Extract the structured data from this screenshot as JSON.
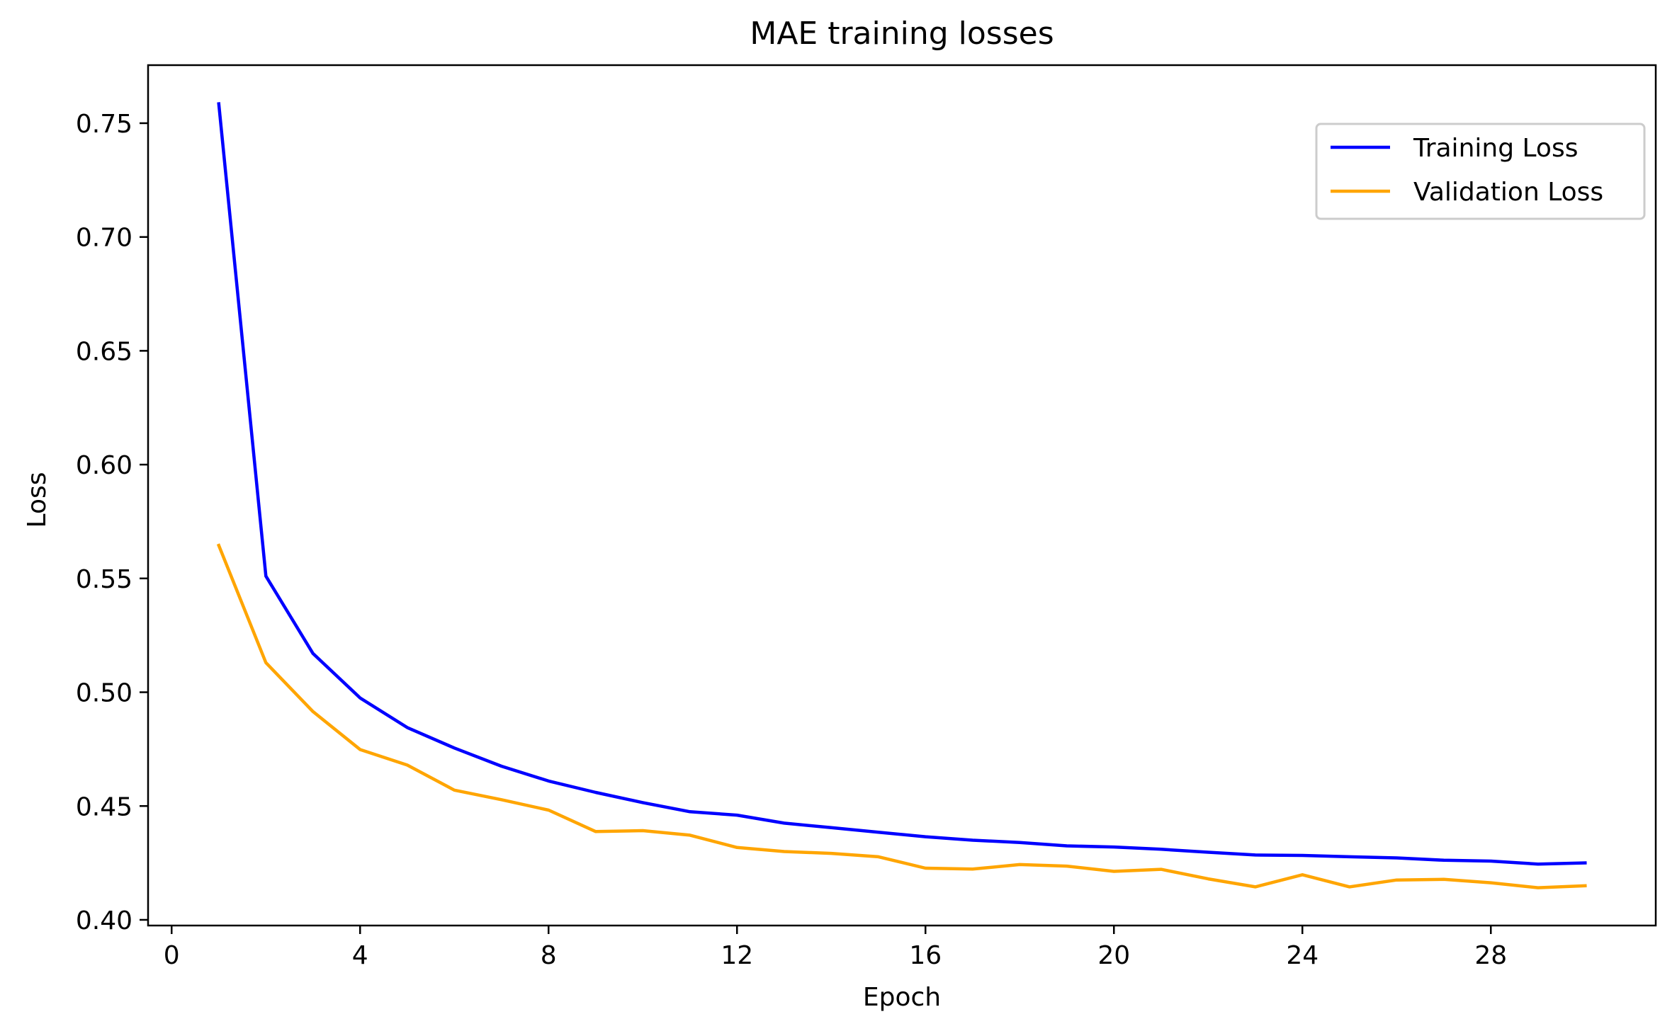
{
  "chart_data": {
    "type": "line",
    "title": "MAE training losses",
    "xlabel": "Epoch",
    "ylabel": "Loss",
    "xlim": [
      -0.5,
      31.5
    ],
    "ylim": [
      0.3975,
      0.7755
    ],
    "xticks": [
      0,
      4,
      8,
      12,
      16,
      20,
      24,
      28
    ],
    "xtick_labels": [
      "0",
      "4",
      "8",
      "12",
      "16",
      "20",
      "24",
      "28"
    ],
    "yticks": [
      0.4,
      0.45,
      0.5,
      0.55,
      0.6,
      0.65,
      0.7,
      0.75
    ],
    "ytick_labels": [
      "0.40",
      "0.45",
      "0.50",
      "0.55",
      "0.60",
      "0.65",
      "0.70",
      "0.75"
    ],
    "grid": false,
    "legend_position": "top-right",
    "x": [
      1,
      2,
      3,
      4,
      5,
      6,
      7,
      8,
      9,
      10,
      11,
      12,
      13,
      14,
      15,
      16,
      17,
      18,
      19,
      20,
      21,
      22,
      23,
      24,
      25,
      26,
      27,
      28,
      29,
      30
    ],
    "series": [
      {
        "name": "Training Loss",
        "color": "#0000ff",
        "values": [
          0.7585,
          0.551,
          0.517,
          0.4975,
          0.4845,
          0.4755,
          0.4675,
          0.461,
          0.456,
          0.4515,
          0.4475,
          0.446,
          0.4425,
          0.4405,
          0.4385,
          0.4365,
          0.435,
          0.434,
          0.4325,
          0.432,
          0.431,
          0.4297,
          0.4285,
          0.4283,
          0.4277,
          0.4272,
          0.4262,
          0.4258,
          0.4245,
          0.425
        ]
      },
      {
        "name": "Validation Loss",
        "color": "#ffa500",
        "values": [
          0.5645,
          0.513,
          0.4915,
          0.4748,
          0.468,
          0.457,
          0.4528,
          0.4482,
          0.4388,
          0.4392,
          0.4372,
          0.4318,
          0.43,
          0.4292,
          0.4277,
          0.4227,
          0.4223,
          0.4243,
          0.4236,
          0.4213,
          0.4222,
          0.418,
          0.4145,
          0.4198,
          0.4145,
          0.4175,
          0.4178,
          0.4163,
          0.4141,
          0.415
        ]
      }
    ]
  }
}
